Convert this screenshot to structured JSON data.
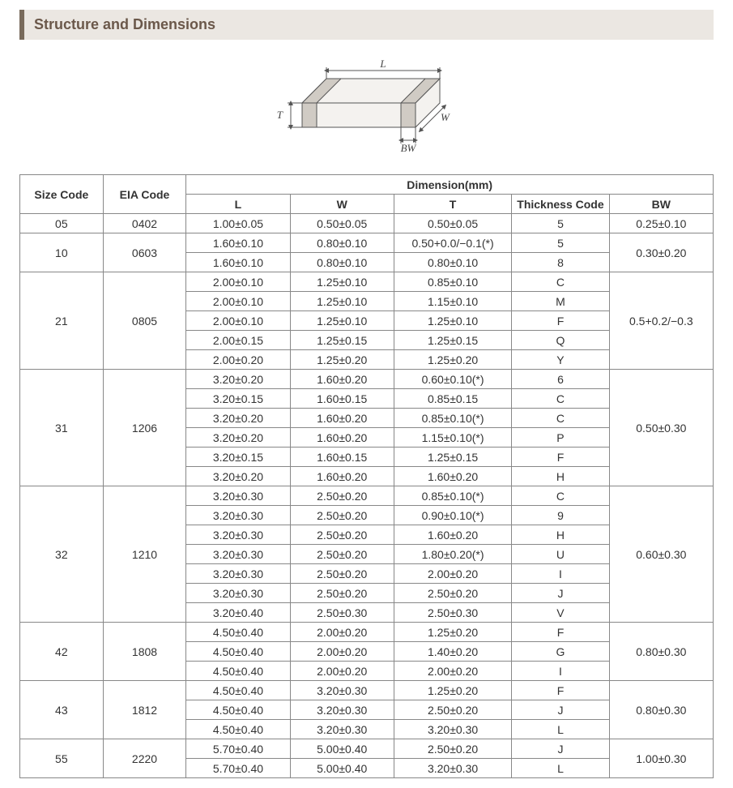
{
  "title": "Structure and Dimensions",
  "diagram": {
    "labels": {
      "L": "L",
      "W": "W",
      "T": "T",
      "BW": "BW"
    },
    "stroke": "#555555",
    "fill": "#f4f2ef",
    "bw_fill": "#d0cbc4"
  },
  "table": {
    "headers": {
      "size": "Size Code",
      "eia": "EIA Code",
      "dimension": "Dimension(mm)",
      "L": "L",
      "W": "W",
      "T": "T",
      "tc": "Thickness  Code",
      "BW": "BW"
    },
    "groups": [
      {
        "size": "05",
        "eia": "0402",
        "bw": "0.25±0.10",
        "rows": [
          {
            "L": "1.00±0.05",
            "W": "0.50±0.05",
            "T": "0.50±0.05",
            "tc": "5"
          }
        ]
      },
      {
        "size": "10",
        "eia": "0603",
        "bw": "0.30±0.20",
        "rows": [
          {
            "L": "1.60±0.10",
            "W": "0.80±0.10",
            "T": "0.50+0.0/−0.1(*)",
            "tc": "5"
          },
          {
            "L": "1.60±0.10",
            "W": "0.80±0.10",
            "T": "0.80±0.10",
            "tc": "8"
          }
        ]
      },
      {
        "size": "21",
        "eia": "0805",
        "bw": "0.5+0.2/−0.3",
        "rows": [
          {
            "L": "2.00±0.10",
            "W": "1.25±0.10",
            "T": "0.85±0.10",
            "tc": "C"
          },
          {
            "L": "2.00±0.10",
            "W": "1.25±0.10",
            "T": "1.15±0.10",
            "tc": "M"
          },
          {
            "L": "2.00±0.10",
            "W": "1.25±0.10",
            "T": "1.25±0.10",
            "tc": "F"
          },
          {
            "L": "2.00±0.15",
            "W": "1.25±0.15",
            "T": "1.25±0.15",
            "tc": "Q"
          },
          {
            "L": "2.00±0.20",
            "W": "1.25±0.20",
            "T": "1.25±0.20",
            "tc": "Y"
          }
        ]
      },
      {
        "size": "31",
        "eia": "1206",
        "bw": "0.50±0.30",
        "rows": [
          {
            "L": "3.20±0.20",
            "W": "1.60±0.20",
            "T": "0.60±0.10(*)",
            "tc": "6"
          },
          {
            "L": "3.20±0.15",
            "W": "1.60±0.15",
            "T": "0.85±0.15",
            "tc": "C"
          },
          {
            "L": "3.20±0.20",
            "W": "1.60±0.20",
            "T": "0.85±0.10(*)",
            "tc": "C"
          },
          {
            "L": "3.20±0.20",
            "W": "1.60±0.20",
            "T": "1.15±0.10(*)",
            "tc": "P"
          },
          {
            "L": "3.20±0.15",
            "W": "1.60±0.15",
            "T": "1.25±0.15",
            "tc": "F"
          },
          {
            "L": "3.20±0.20",
            "W": "1.60±0.20",
            "T": "1.60±0.20",
            "tc": "H"
          }
        ]
      },
      {
        "size": "32",
        "eia": "1210",
        "bw": "0.60±0.30",
        "rows": [
          {
            "L": "3.20±0.30",
            "W": "2.50±0.20",
            "T": "0.85±0.10(*)",
            "tc": "C"
          },
          {
            "L": "3.20±0.30",
            "W": "2.50±0.20",
            "T": "0.90±0.10(*)",
            "tc": "9"
          },
          {
            "L": "3.20±0.30",
            "W": "2.50±0.20",
            "T": "1.60±0.20",
            "tc": "H"
          },
          {
            "L": "3.20±0.30",
            "W": "2.50±0.20",
            "T": "1.80±0.20(*)",
            "tc": "U"
          },
          {
            "L": "3.20±0.30",
            "W": "2.50±0.20",
            "T": "2.00±0.20",
            "tc": "I"
          },
          {
            "L": "3.20±0.30",
            "W": "2.50±0.20",
            "T": "2.50±0.20",
            "tc": "J"
          },
          {
            "L": "3.20±0.40",
            "W": "2.50±0.30",
            "T": "2.50±0.30",
            "tc": "V"
          }
        ]
      },
      {
        "size": "42",
        "eia": "1808",
        "bw": "0.80±0.30",
        "rows": [
          {
            "L": "4.50±0.40",
            "W": "2.00±0.20",
            "T": "1.25±0.20",
            "tc": "F"
          },
          {
            "L": "4.50±0.40",
            "W": "2.00±0.20",
            "T": "1.40±0.20",
            "tc": "G"
          },
          {
            "L": "4.50±0.40",
            "W": "2.00±0.20",
            "T": "2.00±0.20",
            "tc": "I"
          }
        ]
      },
      {
        "size": "43",
        "eia": "1812",
        "bw": "0.80±0.30",
        "rows": [
          {
            "L": "4.50±0.40",
            "W": "3.20±0.30",
            "T": "1.25±0.20",
            "tc": "F"
          },
          {
            "L": "4.50±0.40",
            "W": "3.20±0.30",
            "T": "2.50±0.20",
            "tc": "J"
          },
          {
            "L": "4.50±0.40",
            "W": "3.20±0.30",
            "T": "3.20±0.30",
            "tc": "L"
          }
        ]
      },
      {
        "size": "55",
        "eia": "2220",
        "bw": "1.00±0.30",
        "rows": [
          {
            "L": "5.70±0.40",
            "W": "5.00±0.40",
            "T": "2.50±0.20",
            "tc": "J"
          },
          {
            "L": "5.70±0.40",
            "W": "5.00±0.40",
            "T": "3.20±0.30",
            "tc": "L"
          }
        ]
      }
    ]
  }
}
